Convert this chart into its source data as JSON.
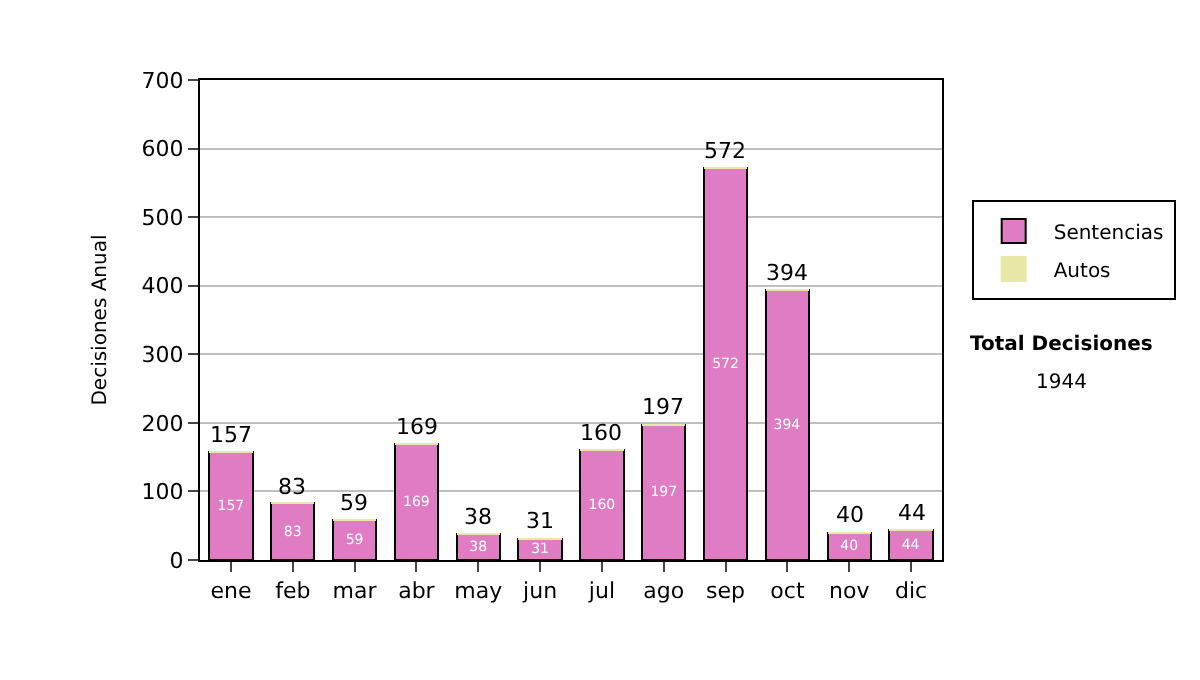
{
  "chart_data": {
    "type": "bar",
    "ylabel": "Decisiones Anual",
    "categories": [
      "ene",
      "feb",
      "mar",
      "abr",
      "may",
      "jun",
      "jul",
      "ago",
      "sep",
      "oct",
      "nov",
      "dic"
    ],
    "series": [
      {
        "name": "Sentencias",
        "color": "#e07cc4",
        "values": [
          157,
          83,
          59,
          169,
          38,
          31,
          160,
          197,
          572,
          394,
          40,
          44
        ],
        "value_labels": [
          "157",
          "83",
          "59",
          "169",
          "38",
          "31",
          "160",
          "197",
          "572",
          "394",
          "40",
          "44"
        ]
      },
      {
        "name": "Autos",
        "color": "#e8e8a8",
        "values": [
          0,
          0,
          0,
          0,
          0,
          0,
          0,
          0,
          0,
          0,
          0,
          0
        ]
      }
    ],
    "stacked": true,
    "totals": [
      "157",
      "83",
      "59",
      "169",
      "38",
      "31",
      "160",
      "197",
      "572",
      "394",
      "40",
      "44"
    ],
    "ylim": [
      0,
      700
    ],
    "yticks": [
      0,
      100,
      200,
      300,
      400,
      500,
      600,
      700
    ],
    "grid": "y",
    "legend": "right",
    "annotations": [
      "Total Decisiones",
      "1944"
    ]
  }
}
